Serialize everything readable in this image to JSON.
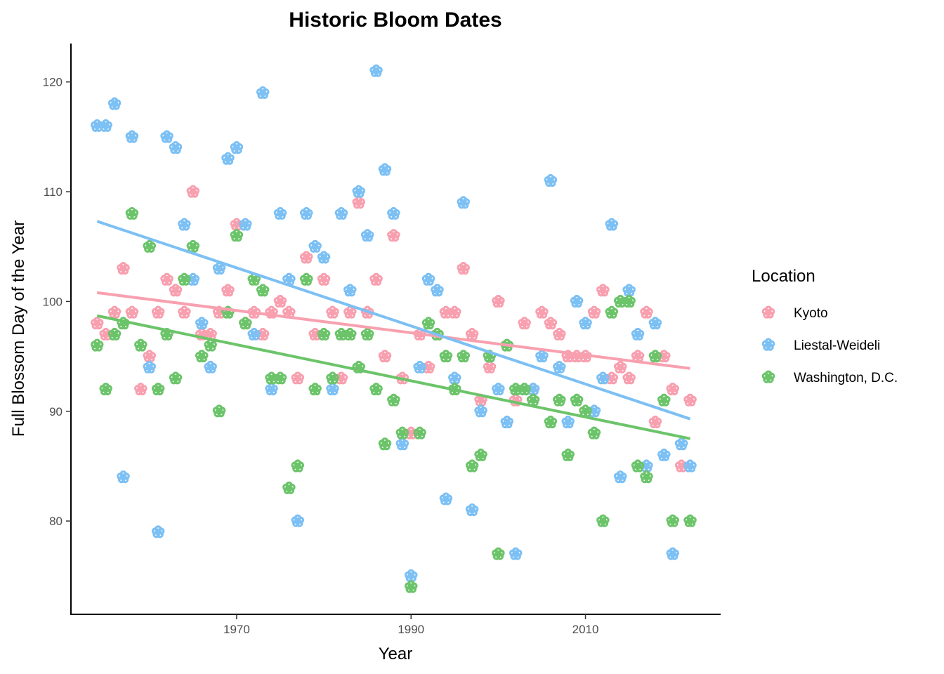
{
  "chart_data": {
    "type": "scatter",
    "title": "Historic Bloom Dates",
    "xlabel": "Year",
    "ylabel": "Full Blossom Day of the Year",
    "xlim": [
      1951,
      2025.5
    ],
    "ylim": [
      71.5,
      123.5
    ],
    "xticks": [
      1970,
      1990,
      2010
    ],
    "yticks": [
      80,
      90,
      100,
      110,
      120
    ],
    "grid": false,
    "legend_title": "Location",
    "legend_position": "right",
    "marker": "flower-outline",
    "series": [
      {
        "name": "Kyoto",
        "color": "#F8A0AF",
        "points": [
          [
            1954,
            98
          ],
          [
            1955,
            97
          ],
          [
            1956,
            99
          ],
          [
            1957,
            103
          ],
          [
            1958,
            99
          ],
          [
            1959,
            92
          ],
          [
            1960,
            95
          ],
          [
            1961,
            99
          ],
          [
            1962,
            102
          ],
          [
            1963,
            101
          ],
          [
            1964,
            99
          ],
          [
            1965,
            110
          ],
          [
            1966,
            97
          ],
          [
            1967,
            97
          ],
          [
            1968,
            99
          ],
          [
            1969,
            101
          ],
          [
            1970,
            107
          ],
          [
            1971,
            98
          ],
          [
            1972,
            99
          ],
          [
            1973,
            97
          ],
          [
            1974,
            99
          ],
          [
            1975,
            100
          ],
          [
            1976,
            99
          ],
          [
            1977,
            93
          ],
          [
            1978,
            104
          ],
          [
            1979,
            97
          ],
          [
            1980,
            102
          ],
          [
            1981,
            99
          ],
          [
            1982,
            93
          ],
          [
            1983,
            99
          ],
          [
            1984,
            109
          ],
          [
            1985,
            99
          ],
          [
            1986,
            102
          ],
          [
            1987,
            95
          ],
          [
            1988,
            106
          ],
          [
            1989,
            93
          ],
          [
            1990,
            88
          ],
          [
            1991,
            97
          ],
          [
            1992,
            94
          ],
          [
            1993,
            97
          ],
          [
            1994,
            99
          ],
          [
            1995,
            99
          ],
          [
            1996,
            103
          ],
          [
            1997,
            97
          ],
          [
            1998,
            91
          ],
          [
            1999,
            94
          ],
          [
            2000,
            100
          ],
          [
            2001,
            96
          ],
          [
            2002,
            91
          ],
          [
            2003,
            98
          ],
          [
            2004,
            92
          ],
          [
            2005,
            99
          ],
          [
            2006,
            98
          ],
          [
            2007,
            97
          ],
          [
            2008,
            95
          ],
          [
            2009,
            95
          ],
          [
            2010,
            95
          ],
          [
            2011,
            99
          ],
          [
            2012,
            101
          ],
          [
            2013,
            93
          ],
          [
            2014,
            94
          ],
          [
            2015,
            93
          ],
          [
            2016,
            95
          ],
          [
            2017,
            99
          ],
          [
            2018,
            89
          ],
          [
            2019,
            95
          ],
          [
            2020,
            92
          ],
          [
            2021,
            85
          ],
          [
            2022,
            91
          ]
        ],
        "trend": [
          [
            1954,
            100.8
          ],
          [
            2022,
            93.9
          ]
        ]
      },
      {
        "name": "Liestal-Weideli",
        "color": "#7CC0F4",
        "points": [
          [
            1954,
            116
          ],
          [
            1955,
            116
          ],
          [
            1956,
            118
          ],
          [
            1957,
            84
          ],
          [
            1958,
            115
          ],
          [
            1960,
            94
          ],
          [
            1961,
            79
          ],
          [
            1962,
            115
          ],
          [
            1963,
            114
          ],
          [
            1964,
            107
          ],
          [
            1965,
            102
          ],
          [
            1966,
            98
          ],
          [
            1967,
            94
          ],
          [
            1968,
            103
          ],
          [
            1969,
            113
          ],
          [
            1970,
            114
          ],
          [
            1971,
            107
          ],
          [
            1972,
            97
          ],
          [
            1973,
            119
          ],
          [
            1974,
            92
          ],
          [
            1975,
            108
          ],
          [
            1976,
            102
          ],
          [
            1977,
            80
          ],
          [
            1978,
            108
          ],
          [
            1979,
            105
          ],
          [
            1980,
            104
          ],
          [
            1981,
            92
          ],
          [
            1982,
            108
          ],
          [
            1983,
            101
          ],
          [
            1984,
            110
          ],
          [
            1985,
            106
          ],
          [
            1986,
            121
          ],
          [
            1987,
            112
          ],
          [
            1988,
            108
          ],
          [
            1989,
            87
          ],
          [
            1990,
            75
          ],
          [
            1991,
            94
          ],
          [
            1992,
            102
          ],
          [
            1993,
            101
          ],
          [
            1994,
            82
          ],
          [
            1995,
            93
          ],
          [
            1996,
            109
          ],
          [
            1997,
            81
          ],
          [
            1998,
            90
          ],
          [
            1999,
            95
          ],
          [
            2000,
            92
          ],
          [
            2001,
            89
          ],
          [
            2002,
            77
          ],
          [
            2003,
            92
          ],
          [
            2004,
            92
          ],
          [
            2005,
            95
          ],
          [
            2006,
            111
          ],
          [
            2007,
            94
          ],
          [
            2008,
            89
          ],
          [
            2009,
            100
          ],
          [
            2010,
            98
          ],
          [
            2011,
            90
          ],
          [
            2012,
            93
          ],
          [
            2013,
            107
          ],
          [
            2014,
            84
          ],
          [
            2015,
            101
          ],
          [
            2016,
            97
          ],
          [
            2017,
            85
          ],
          [
            2018,
            98
          ],
          [
            2019,
            86
          ],
          [
            2020,
            77
          ],
          [
            2021,
            87
          ],
          [
            2022,
            85
          ]
        ],
        "trend": [
          [
            1954,
            107.3
          ],
          [
            2022,
            89.3
          ]
        ]
      },
      {
        "name": "Washington, D.C.",
        "color": "#6CC46A",
        "points": [
          [
            1954,
            96
          ],
          [
            1955,
            92
          ],
          [
            1956,
            97
          ],
          [
            1957,
            98
          ],
          [
            1958,
            108
          ],
          [
            1959,
            96
          ],
          [
            1960,
            105
          ],
          [
            1961,
            92
          ],
          [
            1962,
            97
          ],
          [
            1963,
            93
          ],
          [
            1964,
            102
          ],
          [
            1965,
            105
          ],
          [
            1966,
            95
          ],
          [
            1967,
            96
          ],
          [
            1968,
            90
          ],
          [
            1969,
            99
          ],
          [
            1970,
            106
          ],
          [
            1971,
            98
          ],
          [
            1972,
            102
          ],
          [
            1973,
            101
          ],
          [
            1974,
            93
          ],
          [
            1975,
            93
          ],
          [
            1976,
            83
          ],
          [
            1977,
            85
          ],
          [
            1978,
            102
          ],
          [
            1979,
            92
          ],
          [
            1980,
            97
          ],
          [
            1981,
            93
          ],
          [
            1982,
            97
          ],
          [
            1983,
            97
          ],
          [
            1984,
            94
          ],
          [
            1985,
            97
          ],
          [
            1986,
            92
          ],
          [
            1987,
            87
          ],
          [
            1988,
            91
          ],
          [
            1989,
            88
          ],
          [
            1990,
            74
          ],
          [
            1991,
            88
          ],
          [
            1992,
            98
          ],
          [
            1993,
            97
          ],
          [
            1994,
            95
          ],
          [
            1995,
            92
          ],
          [
            1996,
            95
          ],
          [
            1997,
            85
          ],
          [
            1998,
            86
          ],
          [
            1999,
            95
          ],
          [
            2000,
            77
          ],
          [
            2001,
            96
          ],
          [
            2002,
            92
          ],
          [
            2003,
            92
          ],
          [
            2004,
            91
          ],
          [
            2006,
            89
          ],
          [
            2007,
            91
          ],
          [
            2008,
            86
          ],
          [
            2009,
            91
          ],
          [
            2010,
            90
          ],
          [
            2011,
            88
          ],
          [
            2012,
            80
          ],
          [
            2013,
            99
          ],
          [
            2014,
            100
          ],
          [
            2015,
            100
          ],
          [
            2016,
            85
          ],
          [
            2017,
            84
          ],
          [
            2018,
            95
          ],
          [
            2019,
            91
          ],
          [
            2020,
            80
          ],
          [
            2022,
            80
          ]
        ],
        "trend": [
          [
            1954,
            98.7
          ],
          [
            2022,
            87.5
          ]
        ]
      }
    ]
  }
}
